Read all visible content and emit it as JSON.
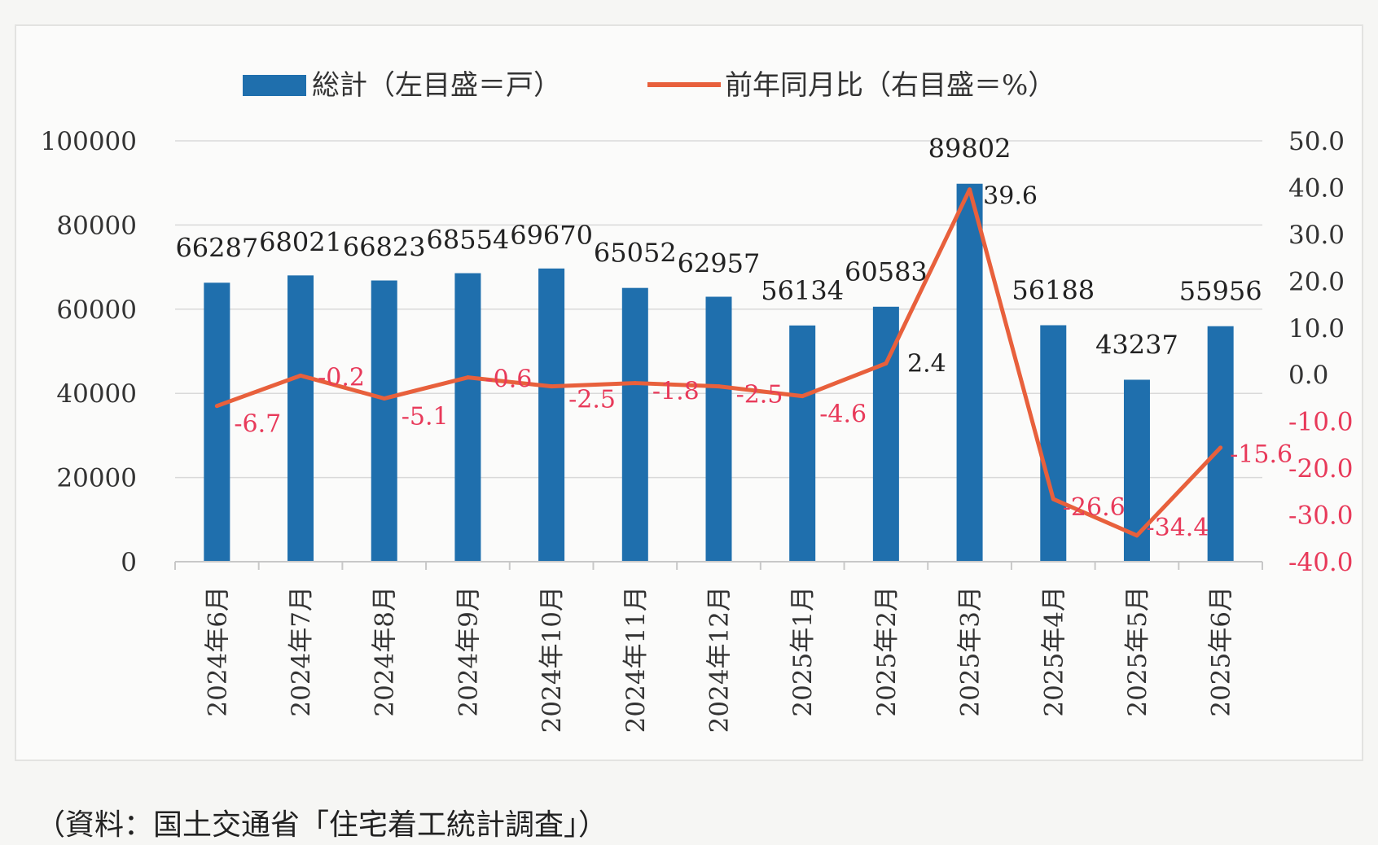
{
  "chart_data": {
    "type": "bar+line",
    "categories": [
      "2024年6月",
      "2024年7月",
      "2024年8月",
      "2024年9月",
      "2024年10月",
      "2024年11月",
      "2024年12月",
      "2025年1月",
      "2025年2月",
      "2025年3月",
      "2025年4月",
      "2025年5月",
      "2025年6月"
    ],
    "series": [
      {
        "name": "総計（左目盛＝戸）",
        "type": "bar",
        "axis": "left",
        "values": [
          66287,
          68021,
          66823,
          68554,
          69670,
          65052,
          62957,
          56134,
          60583,
          89802,
          56188,
          43237,
          55956
        ],
        "labels": [
          "66287",
          "68021",
          "66823",
          "68554",
          "69670",
          "65052",
          "62957",
          "56134",
          "60583",
          "89802",
          "56188",
          "43237",
          "55956"
        ]
      },
      {
        "name": "前年同月比（右目盛＝%）",
        "type": "line",
        "axis": "right",
        "values": [
          -6.7,
          -0.2,
          -5.1,
          -0.6,
          -2.5,
          -1.8,
          -2.5,
          -4.6,
          2.4,
          39.6,
          -26.6,
          -34.4,
          -15.6
        ],
        "labels": [
          "-6.7",
          "-0.2",
          "-5.1",
          "-0.6",
          "-2.5",
          "-1.8",
          "-2.5",
          "-4.6",
          "2.4",
          "39.6",
          "-26.6",
          "-34.4",
          "-15.6"
        ]
      }
    ],
    "y_left": {
      "min": 0,
      "max": 100000,
      "ticks": [
        "0",
        "20000",
        "40000",
        "60000",
        "80000",
        "100000"
      ]
    },
    "y_right": {
      "min": -40,
      "max": 50,
      "ticks": [
        "-40.0",
        "-30.0",
        "-20.0",
        "-10.0",
        "0.0",
        "10.0",
        "20.0",
        "30.0",
        "40.0",
        "50.0"
      ]
    },
    "grid": true,
    "legend_position": "top",
    "colors": {
      "bar": "#1f6fad",
      "line": "#e8603c",
      "negative_label": "#e83a5a",
      "positive_label": "#222222",
      "grid": "#d9d9d9"
    }
  },
  "source": "（資料：国土交通省「住宅着工統計調査」）"
}
